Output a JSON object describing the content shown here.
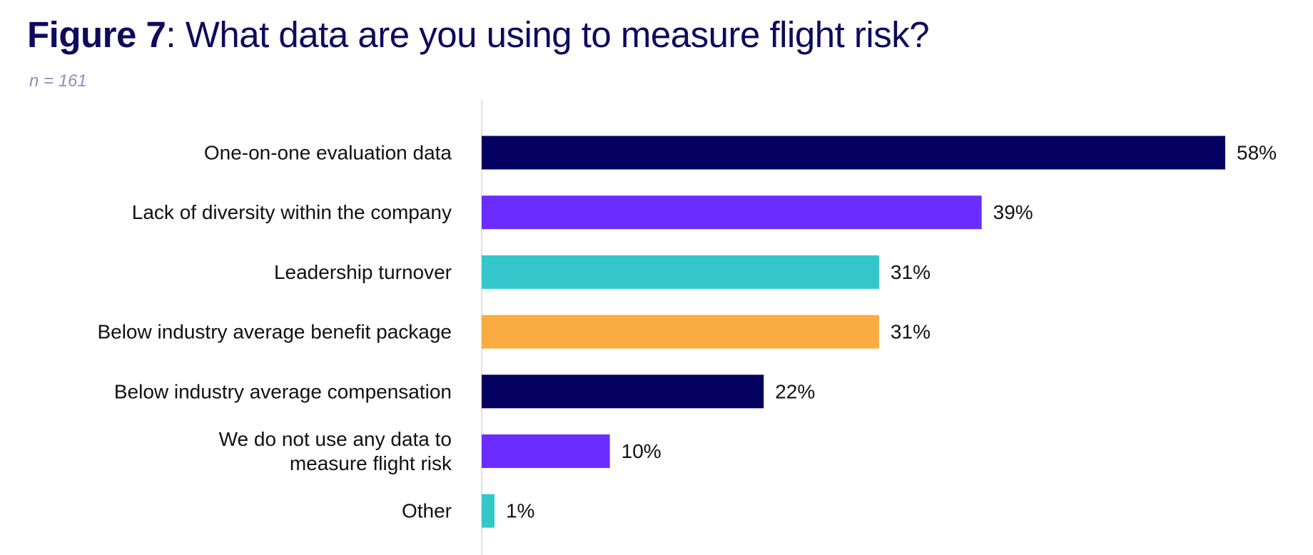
{
  "title": {
    "figure_label": "Figure 7",
    "question": ": What data are you using to measure flight risk?"
  },
  "subtitle": "n = 161",
  "colors": {
    "title": "#0f0a5c",
    "subtitle": "#8e8cc0",
    "navy": "#03005f",
    "purple": "#6b2dff",
    "teal": "#33c7cb",
    "orange": "#faab42",
    "axis": "#d9d9d9"
  },
  "chart_data": {
    "type": "bar",
    "orientation": "horizontal",
    "categories": [
      "One-on-one evaluation data",
      "Lack of diversity within the company",
      "Leadership turnover",
      "Below industry average benefit package",
      "Below industry average compensation",
      "We do not use any data to measure flight risk",
      "Other"
    ],
    "category_lines": [
      [
        "One-on-one evaluation data"
      ],
      [
        "Lack of diversity within the company"
      ],
      [
        "Leadership turnover"
      ],
      [
        "Below industry average benefit package"
      ],
      [
        "Below industry average compensation"
      ],
      [
        "We do not use any data to",
        "measure flight risk"
      ],
      [
        "Other"
      ]
    ],
    "values": [
      58,
      39,
      31,
      31,
      22,
      10,
      1
    ],
    "value_labels": [
      "58%",
      "39%",
      "31%",
      "31%",
      "22%",
      "10%",
      "1%"
    ],
    "bar_colors": [
      "#03005f",
      "#6b2dff",
      "#33c7cb",
      "#faab42",
      "#03005f",
      "#6b2dff",
      "#33c7cb"
    ],
    "unit": "%",
    "xlim": [
      0,
      58
    ],
    "grid": false,
    "legend": "none"
  }
}
